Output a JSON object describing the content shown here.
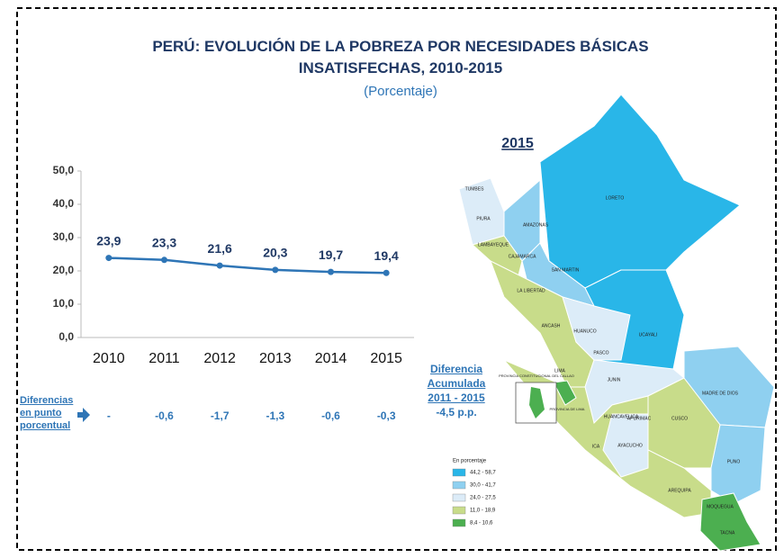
{
  "chart_data": {
    "type": "line",
    "title": "PERÚ: EVOLUCIÓN DE LA POBREZA POR NECESIDADES BÁSICAS INSATISFECHAS, 2010-2015",
    "subtitle": "(Porcentaje)",
    "categories": [
      "2010",
      "2011",
      "2012",
      "2013",
      "2014",
      "2015"
    ],
    "values": [
      23.9,
      23.3,
      21.6,
      20.3,
      19.7,
      19.4
    ],
    "value_labels": [
      "23,9",
      "23,3",
      "21,6",
      "20,3",
      "19,7",
      "19,4"
    ],
    "color": "#2e75b6",
    "ylim": [
      0,
      50
    ],
    "yticks": [
      {
        "value": 0,
        "label": "0,0"
      },
      {
        "value": 10,
        "label": "10,0"
      },
      {
        "value": 20,
        "label": "20,0"
      },
      {
        "value": 30,
        "label": "30,0"
      },
      {
        "value": 40,
        "label": "40,0"
      },
      {
        "value": 50,
        "label": "50,0"
      }
    ]
  },
  "differences": {
    "label": "Diferencias en punto porcentual",
    "values": [
      null,
      -0.6,
      -1.7,
      -1.3,
      -0.6,
      -0.3
    ],
    "value_labels": [
      "-",
      "-0,6",
      "-1,7",
      "-1,3",
      "-0,6",
      "-0,3"
    ]
  },
  "accumulated": {
    "title": "Diferencia Acumulada 2011 - 2015",
    "value": "-4,5 p.p."
  },
  "map": {
    "title": "2015",
    "regions": [
      "TUMBES",
      "PIURA",
      "AMAZONAS",
      "LAMBAYEQUE",
      "CAJAMARCA",
      "SAN MARTIN",
      "LORETO",
      "LA LIBERTAD",
      "ANCASH",
      "HUANUCO",
      "PASCO",
      "UCAYALI",
      "LIMA",
      "JUNIN",
      "MADRE DE DIOS",
      "HUANCAVELICA",
      "CUSCO",
      "ICA",
      "AYACUCHO",
      "APURIMAC",
      "PUNO",
      "AREQUIPA",
      "MOQUEGUA",
      "TACNA"
    ],
    "callao": "PROVINCIA CONSTITUCIONAL DEL CALLAO",
    "lima_province": "PROVINCIA DE LIMA",
    "legend_title": "En porcentaje",
    "legend": [
      {
        "label": "44,2 - 58,7",
        "color": "#29b6e8"
      },
      {
        "label": "30,0 - 41,7",
        "color": "#8fd0f0"
      },
      {
        "label": "24,0 - 27,5",
        "color": "#dcecf8"
      },
      {
        "label": "11,0 - 18,9",
        "color": "#c8dc8a"
      },
      {
        "label": "8,4 - 10,6",
        "color": "#4caf50"
      }
    ]
  }
}
